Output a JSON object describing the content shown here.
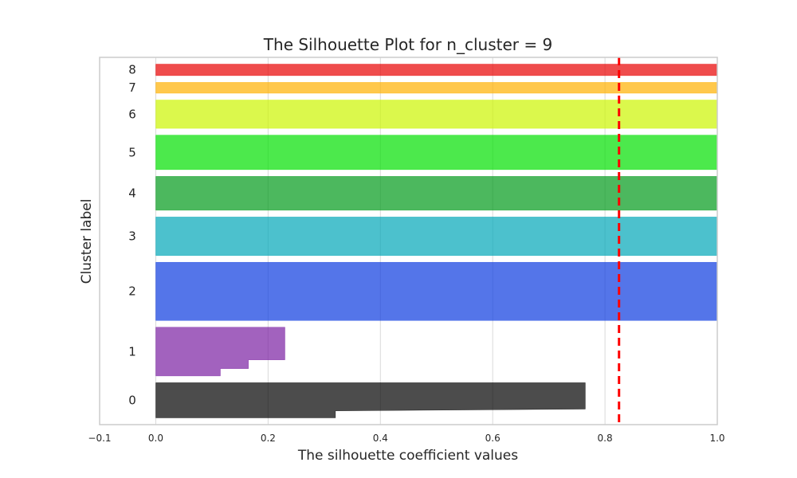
{
  "chart_data": {
    "type": "bar",
    "subtype": "silhouette",
    "title": "The Silhouette Plot for n_cluster = 9",
    "xlabel": "The silhouette coefficient values",
    "ylabel": "Cluster label",
    "xlim": [
      -0.1,
      1.0
    ],
    "x_ticks": [
      -0.1,
      0.0,
      0.2,
      0.4,
      0.6,
      0.8,
      1.0
    ],
    "x_tick_labels": [
      "−0.1",
      "0.0",
      "0.2",
      "0.4",
      "0.6",
      "0.8",
      "1.0"
    ],
    "grid": true,
    "average_silhouette_score": 0.825,
    "reference_line_color": "#ff0000",
    "clusters": [
      {
        "label": "0",
        "color": "#000000",
        "size": 52,
        "silhouette_max": 0.765,
        "silhouette_min": 0.32
      },
      {
        "label": "1",
        "color": "#7b1fa2",
        "size": 72,
        "silhouette_max": 0.23,
        "silhouette_min": 0.115
      },
      {
        "label": "2",
        "color": "#0b3ae0",
        "size": 86,
        "silhouette_max": 1.0,
        "silhouette_min": 1.0
      },
      {
        "label": "3",
        "color": "#00a6b8",
        "size": 57,
        "silhouette_max": 1.0,
        "silhouette_min": 1.0
      },
      {
        "label": "4",
        "color": "#009a1a",
        "size": 50,
        "silhouette_max": 1.0,
        "silhouette_min": 1.0
      },
      {
        "label": "5",
        "color": "#00e000",
        "size": 51,
        "silhouette_max": 1.0,
        "silhouette_min": 1.0
      },
      {
        "label": "6",
        "color": "#ccf500",
        "size": 42,
        "silhouette_max": 1.0,
        "silhouette_min": 1.0
      },
      {
        "label": "7",
        "color": "#ffb000",
        "size": 16,
        "silhouette_max": 1.0,
        "silhouette_min": 1.0
      },
      {
        "label": "8",
        "color": "#e80000",
        "size": 17,
        "silhouette_max": 1.0,
        "silhouette_min": 1.0
      }
    ]
  }
}
